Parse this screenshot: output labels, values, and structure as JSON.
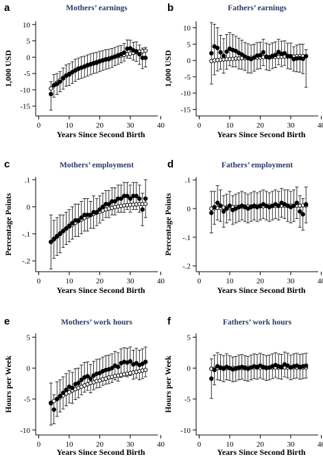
{
  "chart_data": [
    {
      "id": "a",
      "type": "scatter",
      "letter": "a",
      "title": "Mothers’ earnings",
      "xlabel": "Years Since Second Birth",
      "ylabel": "1,000 USD",
      "xlim": [
        -1,
        39
      ],
      "ylim": [
        -18,
        11
      ],
      "xticks": [
        0,
        10,
        20,
        30,
        40
      ],
      "yticks": [
        10,
        5,
        0,
        -5,
        -10,
        -15
      ],
      "ytick_labels": [
        "10",
        "5",
        "0",
        "-5",
        "-10",
        "-15"
      ],
      "x": [
        4,
        5,
        6,
        7,
        8,
        9,
        10,
        11,
        12,
        13,
        14,
        15,
        16,
        17,
        18,
        19,
        20,
        21,
        22,
        23,
        24,
        25,
        26,
        27,
        28,
        29,
        30,
        31,
        32,
        33,
        34,
        35
      ],
      "estimate": [
        -11.3,
        -8.6,
        -8.2,
        -7.5,
        -6.5,
        -5.6,
        -5.3,
        -4.6,
        -4.0,
        -3.5,
        -3.2,
        -2.9,
        -2.5,
        -2.2,
        -1.9,
        -1.7,
        -1.3,
        -1.0,
        -0.7,
        -0.6,
        -0.2,
        0.2,
        0.6,
        0.9,
        1.4,
        2.6,
        2.7,
        2.1,
        1.8,
        0.9,
        -0.2,
        -0.2
      ],
      "ci_low": [
        -16.2,
        -12.3,
        -11.4,
        -10.6,
        -9.8,
        -8.9,
        -8.7,
        -8.0,
        -7.4,
        -6.8,
        -6.5,
        -6.1,
        -5.8,
        -5.4,
        -5.0,
        -4.8,
        -4.4,
        -4.0,
        -3.7,
        -3.5,
        -3.1,
        -2.6,
        -2.2,
        -1.7,
        -1.2,
        -0.3,
        -0.4,
        -0.9,
        -1.3,
        -2.2,
        -3.5,
        -3.0
      ],
      "ci_high": [
        -7.5,
        -5.3,
        -5.0,
        -4.4,
        -3.3,
        -2.4,
        -2.0,
        -1.4,
        -0.6,
        -0.3,
        0.1,
        0.3,
        0.7,
        1.0,
        1.3,
        1.5,
        1.8,
        2.0,
        2.3,
        2.4,
        2.7,
        3.0,
        3.4,
        3.6,
        4.2,
        5.3,
        5.2,
        4.6,
        4.7,
        3.7,
        2.8,
        3.0
      ],
      "fit": [
        -9.6,
        -8.6,
        -7.8,
        -7.0,
        -6.3,
        -5.7,
        -5.1,
        -4.6,
        -4.1,
        -3.6,
        -3.2,
        -2.8,
        -2.4,
        -2.1,
        -1.8,
        -1.5,
        -1.2,
        -0.9,
        -0.6,
        -0.4,
        -0.1,
        0.1,
        0.3,
        0.5,
        0.7,
        0.9,
        1.1,
        1.3,
        1.5,
        1.7,
        1.8,
        2.0
      ]
    },
    {
      "id": "b",
      "type": "scatter",
      "letter": "b",
      "title": "Fathers’ earnings",
      "xlabel": "Years Since Second Birth",
      "ylabel": "1,000 USD",
      "xlim": [
        -1,
        39
      ],
      "ylim": [
        -17,
        12
      ],
      "xticks": [
        0,
        10,
        20,
        30,
        40
      ],
      "yticks": [
        10,
        5,
        0,
        -5,
        -10,
        -15
      ],
      "ytick_labels": [
        "10",
        "5",
        "0",
        "-5",
        "-10",
        "-15"
      ],
      "x": [
        4,
        5,
        6,
        7,
        8,
        9,
        10,
        11,
        12,
        13,
        14,
        15,
        16,
        17,
        18,
        19,
        20,
        21,
        22,
        23,
        24,
        25,
        26,
        27,
        28,
        29,
        30,
        31,
        32,
        33,
        34,
        35
      ],
      "estimate": [
        2.2,
        4.3,
        3.8,
        2.5,
        1.4,
        2.7,
        3.6,
        3.2,
        2.9,
        2.3,
        1.8,
        1.2,
        0.7,
        0.4,
        0.9,
        1.5,
        1.6,
        2.5,
        1.2,
        0.9,
        1.4,
        1.7,
        2.6,
        2.0,
        2.2,
        1.4,
        1.3,
        0.4,
        0.6,
        0.7,
        0.5,
        1.3
      ],
      "ci_low": [
        -7.2,
        -4.4,
        -3.2,
        -2.7,
        -3.9,
        -2.7,
        -1.6,
        -2.0,
        -2.0,
        -2.6,
        -2.7,
        -3.1,
        -3.8,
        -3.9,
        -3.3,
        -2.7,
        -2.5,
        -1.6,
        -2.9,
        -3.1,
        -2.5,
        -2.2,
        -1.3,
        -1.9,
        -1.5,
        -2.5,
        -2.7,
        -3.3,
        -3.5,
        -3.6,
        -4.1,
        -8.2
      ],
      "ci_high": [
        11.6,
        11.1,
        10.0,
        7.7,
        6.7,
        7.9,
        8.5,
        7.9,
        7.4,
        6.8,
        6.2,
        5.5,
        5.1,
        4.7,
        5.0,
        5.5,
        5.6,
        6.5,
        5.3,
        5.0,
        5.4,
        5.7,
        6.5,
        5.9,
        6.0,
        5.3,
        5.3,
        4.2,
        4.7,
        5.0,
        5.0,
        3.3
      ],
      "fit": [
        -0.2,
        0.0,
        0.1,
        0.2,
        0.3,
        0.4,
        0.4,
        0.5,
        0.6,
        0.6,
        0.7,
        0.7,
        0.8,
        0.8,
        0.9,
        0.9,
        0.9,
        1.0,
        1.0,
        1.0,
        1.1,
        1.1,
        1.1,
        1.1,
        1.2,
        1.2,
        1.2,
        1.2,
        1.3,
        1.3,
        1.3,
        1.3
      ]
    },
    {
      "id": "c",
      "type": "scatter",
      "letter": "c",
      "title": "Mothers’ employment",
      "xlabel": "Years Since Second Birth",
      "ylabel": "Percentage Points",
      "xlim": [
        -1,
        39
      ],
      "ylim": [
        -0.24,
        0.11
      ],
      "xticks": [
        0,
        10,
        20,
        30,
        40
      ],
      "yticks": [
        0.1,
        0,
        -0.1,
        -0.2
      ],
      "ytick_labels": [
        ".1",
        "0",
        "-.1",
        "-.2"
      ],
      "x": [
        4,
        5,
        6,
        7,
        8,
        9,
        10,
        11,
        12,
        13,
        14,
        15,
        16,
        17,
        18,
        19,
        20,
        21,
        22,
        23,
        24,
        25,
        26,
        27,
        28,
        29,
        30,
        31,
        32,
        33,
        34,
        35
      ],
      "estimate": [
        -0.13,
        -0.12,
        -0.11,
        -0.1,
        -0.09,
        -0.08,
        -0.07,
        -0.06,
        -0.05,
        -0.05,
        -0.04,
        -0.03,
        -0.03,
        -0.03,
        -0.02,
        -0.02,
        -0.01,
        0.0,
        0.01,
        0.01,
        0.02,
        0.02,
        0.03,
        0.03,
        0.04,
        0.04,
        0.03,
        0.04,
        0.04,
        0.03,
        -0.01,
        0.03
      ],
      "ci_low": [
        -0.23,
        -0.19,
        -0.18,
        -0.17,
        -0.15,
        -0.14,
        -0.13,
        -0.12,
        -0.11,
        -0.11,
        -0.1,
        -0.09,
        -0.09,
        -0.08,
        -0.08,
        -0.07,
        -0.06,
        -0.05,
        -0.04,
        -0.04,
        -0.03,
        -0.03,
        -0.02,
        -0.02,
        -0.02,
        -0.01,
        -0.02,
        -0.01,
        -0.01,
        -0.02,
        -0.07,
        -0.04
      ],
      "ci_high": [
        -0.03,
        -0.05,
        -0.04,
        -0.03,
        -0.03,
        -0.02,
        -0.01,
        0.0,
        0.01,
        0.01,
        0.02,
        0.03,
        0.03,
        0.02,
        0.04,
        0.03,
        0.04,
        0.05,
        0.06,
        0.06,
        0.07,
        0.07,
        0.08,
        0.08,
        0.09,
        0.09,
        0.08,
        0.09,
        0.09,
        0.08,
        0.05,
        0.1
      ],
      "fit": [
        -0.13,
        -0.118,
        -0.108,
        -0.098,
        -0.089,
        -0.081,
        -0.073,
        -0.066,
        -0.059,
        -0.053,
        -0.047,
        -0.041,
        -0.036,
        -0.031,
        -0.026,
        -0.022,
        -0.018,
        -0.014,
        -0.01,
        -0.007,
        -0.004,
        -0.001,
        0.001,
        0.003,
        0.005,
        0.006,
        0.007,
        0.008,
        0.009,
        0.01,
        0.01,
        0.011
      ]
    },
    {
      "id": "d",
      "type": "scatter",
      "letter": "d",
      "title": "Fathers’ employment",
      "xlabel": "Years Since Second Birth",
      "ylabel": "Percentage Points",
      "xlim": [
        -1,
        39
      ],
      "ylim": [
        -0.22,
        0.11
      ],
      "xticks": [
        0,
        10,
        20,
        30,
        40
      ],
      "yticks": [
        0.1,
        0,
        -0.1,
        -0.2
      ],
      "ytick_labels": [
        ".1",
        "0",
        "-.1",
        "-.2"
      ],
      "x": [
        4,
        5,
        6,
        7,
        8,
        9,
        10,
        11,
        12,
        13,
        14,
        15,
        16,
        17,
        18,
        19,
        20,
        21,
        22,
        23,
        24,
        25,
        26,
        27,
        28,
        29,
        30,
        31,
        32,
        33,
        34,
        35
      ],
      "estimate": [
        -0.015,
        0.005,
        0.02,
        0.01,
        -0.01,
        0.0,
        0.01,
        -0.005,
        0.0,
        0.005,
        0.01,
        0.005,
        0.0,
        0.005,
        0.01,
        0.005,
        0.01,
        0.015,
        0.01,
        0.005,
        0.01,
        0.015,
        0.01,
        0.02,
        0.015,
        0.01,
        0.005,
        0.01,
        0.02,
        -0.01,
        -0.02,
        0.015
      ],
      "ci_low": [
        -0.085,
        -0.055,
        -0.04,
        -0.045,
        -0.065,
        -0.05,
        -0.04,
        -0.055,
        -0.05,
        -0.045,
        -0.04,
        -0.045,
        -0.05,
        -0.045,
        -0.04,
        -0.045,
        -0.04,
        -0.035,
        -0.04,
        -0.045,
        -0.04,
        -0.035,
        -0.04,
        -0.03,
        -0.035,
        -0.045,
        -0.05,
        -0.045,
        -0.035,
        -0.065,
        -0.075,
        -0.05
      ],
      "ci_high": [
        0.06,
        0.06,
        0.08,
        0.065,
        0.045,
        0.05,
        0.06,
        0.045,
        0.05,
        0.055,
        0.06,
        0.055,
        0.05,
        0.055,
        0.06,
        0.055,
        0.06,
        0.065,
        0.06,
        0.055,
        0.06,
        0.065,
        0.06,
        0.07,
        0.065,
        0.065,
        0.06,
        0.065,
        0.075,
        0.045,
        0.035,
        0.075
      ],
      "fit": [
        0.0,
        0.001,
        0.002,
        0.003,
        0.004,
        0.004,
        0.005,
        0.005,
        0.006,
        0.006,
        0.006,
        0.007,
        0.007,
        0.007,
        0.008,
        0.008,
        0.008,
        0.008,
        0.009,
        0.009,
        0.009,
        0.009,
        0.009,
        0.01,
        0.01,
        0.01,
        0.01,
        0.01,
        0.01,
        0.01,
        0.011,
        0.011
      ]
    },
    {
      "id": "e",
      "type": "scatter",
      "letter": "e",
      "title": "Mothers’ work hours",
      "xlabel": "Years Since Second Birth",
      "ylabel": "Hours per Week",
      "xlim": [
        -1,
        39
      ],
      "ylim": [
        -10.8,
        5.6
      ],
      "xticks": [
        0,
        10,
        20,
        30,
        40
      ],
      "yticks": [
        5,
        0,
        -5,
        -10
      ],
      "ytick_labels": [
        "5",
        "0",
        "-5",
        "-10"
      ],
      "x": [
        4,
        5,
        6,
        7,
        8,
        9,
        10,
        11,
        12,
        13,
        14,
        15,
        16,
        17,
        18,
        19,
        20,
        21,
        22,
        23,
        24,
        25,
        26,
        27,
        28,
        29,
        30,
        31,
        32,
        33,
        34,
        35
      ],
      "estimate": [
        -5.6,
        -6.7,
        -5.0,
        -4.5,
        -4.0,
        -3.5,
        -3.0,
        -3.2,
        -2.6,
        -2.4,
        -1.9,
        -1.5,
        -1.3,
        -1.7,
        -1.2,
        -0.9,
        -0.8,
        -0.5,
        -0.3,
        -0.2,
        0.0,
        0.4,
        0.2,
        0.8,
        1.0,
        0.9,
        1.1,
        0.6,
        0.8,
        0.5,
        0.7,
        1.0
      ],
      "ci_low": [
        -9.2,
        -9.0,
        -7.8,
        -7.1,
        -6.6,
        -6.1,
        -5.6,
        -5.7,
        -5.1,
        -4.8,
        -4.3,
        -3.9,
        -3.6,
        -4.0,
        -3.5,
        -3.2,
        -3.1,
        -2.8,
        -2.6,
        -2.5,
        -2.3,
        -1.9,
        -2.1,
        -1.5,
        -1.3,
        -1.4,
        -1.2,
        -1.8,
        -1.6,
        -1.9,
        -1.7,
        -1.4
      ],
      "ci_high": [
        -2.4,
        -4.3,
        -2.2,
        -1.9,
        -1.4,
        -0.9,
        -0.4,
        -0.7,
        -0.1,
        0.0,
        0.5,
        0.9,
        1.0,
        0.6,
        1.1,
        1.4,
        1.5,
        1.8,
        2.0,
        2.1,
        2.3,
        2.7,
        2.5,
        3.1,
        3.3,
        3.2,
        3.4,
        2.9,
        3.2,
        2.9,
        3.1,
        3.4
      ],
      "fit": [
        -5.7,
        -5.3,
        -5.0,
        -4.7,
        -4.4,
        -4.1,
        -3.9,
        -3.6,
        -3.4,
        -3.2,
        -3.0,
        -2.8,
        -2.6,
        -2.4,
        -2.3,
        -2.1,
        -2.0,
        -1.8,
        -1.7,
        -1.5,
        -1.4,
        -1.3,
        -1.2,
        -1.1,
        -1.0,
        -0.9,
        -0.8,
        -0.7,
        -0.6,
        -0.5,
        -0.4,
        -0.3
      ]
    },
    {
      "id": "f",
      "type": "scatter",
      "letter": "f",
      "title": "Fathers’ work hours",
      "xlabel": "Years Since Second Birth",
      "ylabel": "Hours per Week",
      "xlim": [
        -1,
        39
      ],
      "ylim": [
        -10.8,
        5.6
      ],
      "xticks": [
        0,
        10,
        20,
        30,
        40
      ],
      "yticks": [
        5,
        0,
        -5,
        -10
      ],
      "ytick_labels": [
        "5",
        "0",
        "-5",
        "-10"
      ],
      "x": [
        4,
        5,
        6,
        7,
        8,
        9,
        10,
        11,
        12,
        13,
        14,
        15,
        16,
        17,
        18,
        19,
        20,
        21,
        22,
        23,
        24,
        25,
        26,
        27,
        28,
        29,
        30,
        31,
        32,
        33,
        34,
        35
      ],
      "estimate": [
        -1.7,
        -0.3,
        0.3,
        0.1,
        -0.1,
        0.2,
        0.0,
        -0.2,
        -0.1,
        0.1,
        0.2,
        0.0,
        -0.1,
        0.1,
        0.3,
        0.2,
        0.4,
        0.2,
        0.0,
        0.1,
        0.3,
        0.5,
        0.3,
        0.2,
        0.6,
        0.4,
        0.1,
        0.3,
        0.4,
        0.2,
        0.3,
        0.4
      ],
      "ci_low": [
        -4.9,
        -2.7,
        -1.9,
        -2.0,
        -2.2,
        -1.9,
        -2.0,
        -2.2,
        -2.1,
        -1.9,
        -1.8,
        -2.0,
        -2.1,
        -1.9,
        -1.7,
        -1.8,
        -1.6,
        -1.8,
        -2.0,
        -1.9,
        -1.7,
        -1.5,
        -1.7,
        -1.8,
        -1.4,
        -1.6,
        -1.9,
        -1.7,
        -1.6,
        -1.8,
        -1.7,
        -1.6
      ],
      "ci_high": [
        1.5,
        2.1,
        2.5,
        2.2,
        2.0,
        2.3,
        2.0,
        1.8,
        1.9,
        2.1,
        2.2,
        2.0,
        1.9,
        2.1,
        2.3,
        2.2,
        2.4,
        2.2,
        2.0,
        2.1,
        2.3,
        2.5,
        2.3,
        2.2,
        2.6,
        2.4,
        2.1,
        2.3,
        2.4,
        2.2,
        2.3,
        2.4
      ],
      "fit": [
        -0.1,
        -0.1,
        0.0,
        0.0,
        0.0,
        0.0,
        0.0,
        0.0,
        0.0,
        0.0,
        0.0,
        0.1,
        0.1,
        0.1,
        0.1,
        0.1,
        0.1,
        0.1,
        0.1,
        0.1,
        0.1,
        0.1,
        0.1,
        0.1,
        0.1,
        0.1,
        0.1,
        0.1,
        0.1,
        0.1,
        0.1,
        0.1
      ]
    }
  ]
}
